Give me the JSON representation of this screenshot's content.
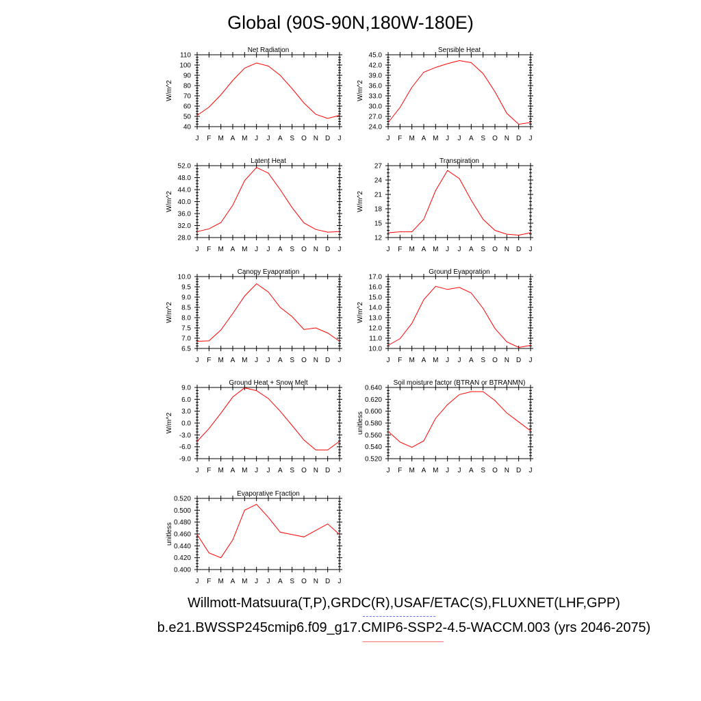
{
  "page": {
    "title": "Global (90S-90N,180W-180E)",
    "footer_line1": "Willmott-Matsuura(T,P),GRDC(R),USAF/ETAC(S),FLUXNET(LHF,GPP)",
    "footer_line2": "b.e21.BWSSP245cmip6.f09_g17.CMIP6-SSP2-4.5-WACCM.003 (yrs 2046-2075)"
  },
  "colors": {
    "line": "#ff0000",
    "axis": "#000000"
  },
  "chart_data": [
    {
      "type": "line",
      "title": "Net Radiation",
      "ylabel": "W/m^2",
      "x": [
        "J",
        "F",
        "M",
        "A",
        "M",
        "J",
        "J",
        "A",
        "S",
        "O",
        "N",
        "D",
        "J"
      ],
      "yticks": [
        "40",
        "50",
        "60",
        "70",
        "80",
        "90",
        "100",
        "110"
      ],
      "ylim": [
        40,
        110
      ],
      "values": [
        51,
        59,
        71,
        85,
        97,
        102,
        99,
        90,
        77,
        63,
        52,
        48,
        51
      ]
    },
    {
      "type": "line",
      "title": "Sensible Heat",
      "ylabel": "W/m^2",
      "x": [
        "J",
        "F",
        "M",
        "A",
        "M",
        "J",
        "J",
        "A",
        "S",
        "O",
        "N",
        "D",
        "J"
      ],
      "yticks": [
        "24.0",
        "27.0",
        "30.0",
        "33.0",
        "36.0",
        "39.0",
        "42.0",
        "45.0"
      ],
      "ylim": [
        24,
        45
      ],
      "values": [
        25.2,
        29.6,
        35.5,
        39.9,
        41.3,
        42.4,
        43.3,
        42.7,
        39.5,
        34.2,
        27.9,
        24.7,
        25.2
      ]
    },
    {
      "type": "line",
      "title": "Latent Heat",
      "ylabel": "W/m^2",
      "x": [
        "J",
        "F",
        "M",
        "A",
        "M",
        "J",
        "J",
        "A",
        "S",
        "O",
        "N",
        "D",
        "J"
      ],
      "yticks": [
        "28.0",
        "32.0",
        "36.0",
        "40.0",
        "44.0",
        "48.0",
        "52.0"
      ],
      "ylim": [
        28,
        52
      ],
      "values": [
        30.0,
        30.9,
        33.0,
        38.8,
        47.0,
        51.4,
        49.5,
        44.0,
        38.0,
        32.9,
        30.7,
        29.8,
        30.0
      ]
    },
    {
      "type": "line",
      "title": "Transpiration",
      "ylabel": "W/m^2",
      "x": [
        "J",
        "F",
        "M",
        "A",
        "M",
        "J",
        "J",
        "A",
        "S",
        "O",
        "N",
        "D",
        "J"
      ],
      "yticks": [
        "12",
        "15",
        "18",
        "21",
        "24",
        "27"
      ],
      "ylim": [
        12,
        27
      ],
      "values": [
        13.0,
        13.2,
        13.2,
        15.8,
        21.8,
        26.0,
        24.3,
        19.8,
        15.8,
        13.5,
        12.7,
        12.5,
        13.0
      ]
    },
    {
      "type": "line",
      "title": "Canopy Evaporation",
      "ylabel": "W/m^2",
      "x": [
        "J",
        "F",
        "M",
        "A",
        "M",
        "J",
        "J",
        "A",
        "S",
        "O",
        "N",
        "D",
        "J"
      ],
      "yticks": [
        "6.5",
        "7.0",
        "7.5",
        "8.0",
        "8.5",
        "9.0",
        "9.5",
        "10.0"
      ],
      "ylim": [
        6.5,
        10.0
      ],
      "values": [
        6.85,
        6.87,
        7.4,
        8.2,
        9.05,
        9.65,
        9.25,
        8.5,
        8.05,
        7.42,
        7.5,
        7.25,
        6.85
      ]
    },
    {
      "type": "line",
      "title": "Ground Evaporation",
      "ylabel": "W/m^2",
      "x": [
        "J",
        "F",
        "M",
        "A",
        "M",
        "J",
        "J",
        "A",
        "S",
        "O",
        "N",
        "D",
        "J"
      ],
      "yticks": [
        "10.0",
        "11.0",
        "12.0",
        "13.0",
        "14.0",
        "15.0",
        "16.0",
        "17.0"
      ],
      "ylim": [
        10,
        17
      ],
      "values": [
        10.3,
        10.95,
        12.45,
        14.75,
        16.05,
        15.75,
        15.95,
        15.4,
        13.9,
        11.95,
        10.65,
        10.1,
        10.3
      ]
    },
    {
      "type": "line",
      "title": "Ground Heat + Snow Melt",
      "ylabel": "W/m^2",
      "x": [
        "J",
        "F",
        "M",
        "A",
        "M",
        "J",
        "J",
        "A",
        "S",
        "O",
        "N",
        "D",
        "J"
      ],
      "yticks": [
        "-9.0",
        "-6.0",
        "-3.0",
        "0.0",
        "3.0",
        "6.0",
        "9.0"
      ],
      "ylim": [
        -9,
        9
      ],
      "values": [
        -4.6,
        -1.4,
        2.5,
        6.6,
        8.9,
        8.2,
        6.2,
        3.0,
        -0.6,
        -4.3,
        -6.8,
        -6.8,
        -4.6
      ]
    },
    {
      "type": "line",
      "title": "Soil moisture factor (BTRAN or BTRANMN)",
      "ylabel": "unitless",
      "x": [
        "J",
        "F",
        "M",
        "A",
        "M",
        "J",
        "J",
        "A",
        "S",
        "O",
        "N",
        "D",
        "J"
      ],
      "yticks": [
        "0.520",
        "0.540",
        "0.560",
        "0.580",
        "0.600",
        "0.620",
        "0.640"
      ],
      "ylim": [
        0.52,
        0.64
      ],
      "values": [
        0.566,
        0.548,
        0.539,
        0.55,
        0.588,
        0.611,
        0.628,
        0.633,
        0.633,
        0.618,
        0.597,
        0.582,
        0.567
      ]
    },
    {
      "type": "line",
      "title": "Evaporative Fraction",
      "ylabel": "unitless",
      "x": [
        "J",
        "F",
        "M",
        "A",
        "M",
        "J",
        "J",
        "A",
        "S",
        "O",
        "N",
        "D",
        "J"
      ],
      "yticks": [
        "0.400",
        "0.420",
        "0.440",
        "0.460",
        "0.480",
        "0.500",
        "0.520"
      ],
      "ylim": [
        0.4,
        0.52
      ],
      "values": [
        0.459,
        0.428,
        0.42,
        0.45,
        0.5,
        0.51,
        0.488,
        0.463,
        0.459,
        0.455,
        0.466,
        0.477,
        0.459
      ]
    }
  ]
}
